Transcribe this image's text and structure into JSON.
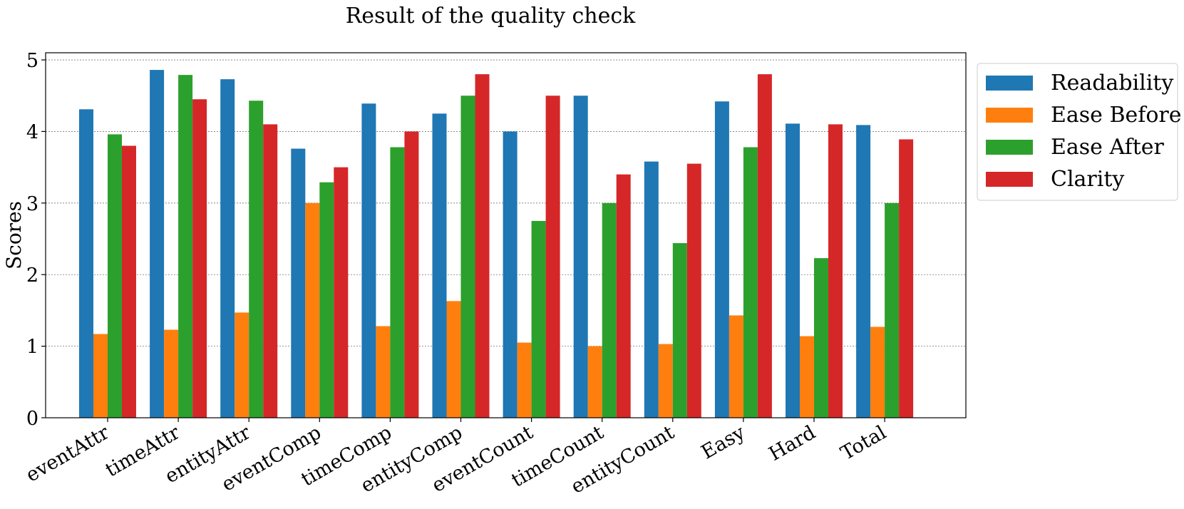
{
  "chart_data": {
    "type": "bar",
    "title": "Result of the quality check",
    "xlabel": "",
    "ylabel": "Scores",
    "ylim": [
      0,
      5.1
    ],
    "yticks": [
      0,
      1,
      2,
      3,
      4,
      5
    ],
    "grid": "y-dashed",
    "legend_position": "outside-top-right",
    "categories": [
      "eventAttr",
      "timeAttr",
      "entityAttr",
      "eventComp",
      "timeComp",
      "entityComp",
      "eventCount",
      "timeCount",
      "entityCount",
      "Easy",
      "Hard",
      "Total"
    ],
    "series": [
      {
        "name": "Readability",
        "color": "#1f77b4",
        "values": [
          4.31,
          4.86,
          4.73,
          3.76,
          4.39,
          4.25,
          4.0,
          4.5,
          3.58,
          4.42,
          4.11,
          4.09
        ]
      },
      {
        "name": "Ease Before",
        "color": "#ff7f0e",
        "values": [
          1.17,
          1.23,
          1.47,
          3.0,
          1.28,
          1.63,
          1.05,
          1.0,
          1.03,
          1.43,
          1.14,
          1.27
        ]
      },
      {
        "name": "Ease After",
        "color": "#2ca02c",
        "values": [
          3.96,
          4.79,
          4.43,
          3.29,
          3.78,
          4.5,
          2.75,
          3.0,
          2.44,
          3.78,
          2.23,
          3.0
        ]
      },
      {
        "name": "Clarity",
        "color": "#d62728",
        "values": [
          3.8,
          4.45,
          4.1,
          3.5,
          4.0,
          4.8,
          4.5,
          3.4,
          3.55,
          4.8,
          4.1,
          3.89
        ]
      }
    ]
  }
}
